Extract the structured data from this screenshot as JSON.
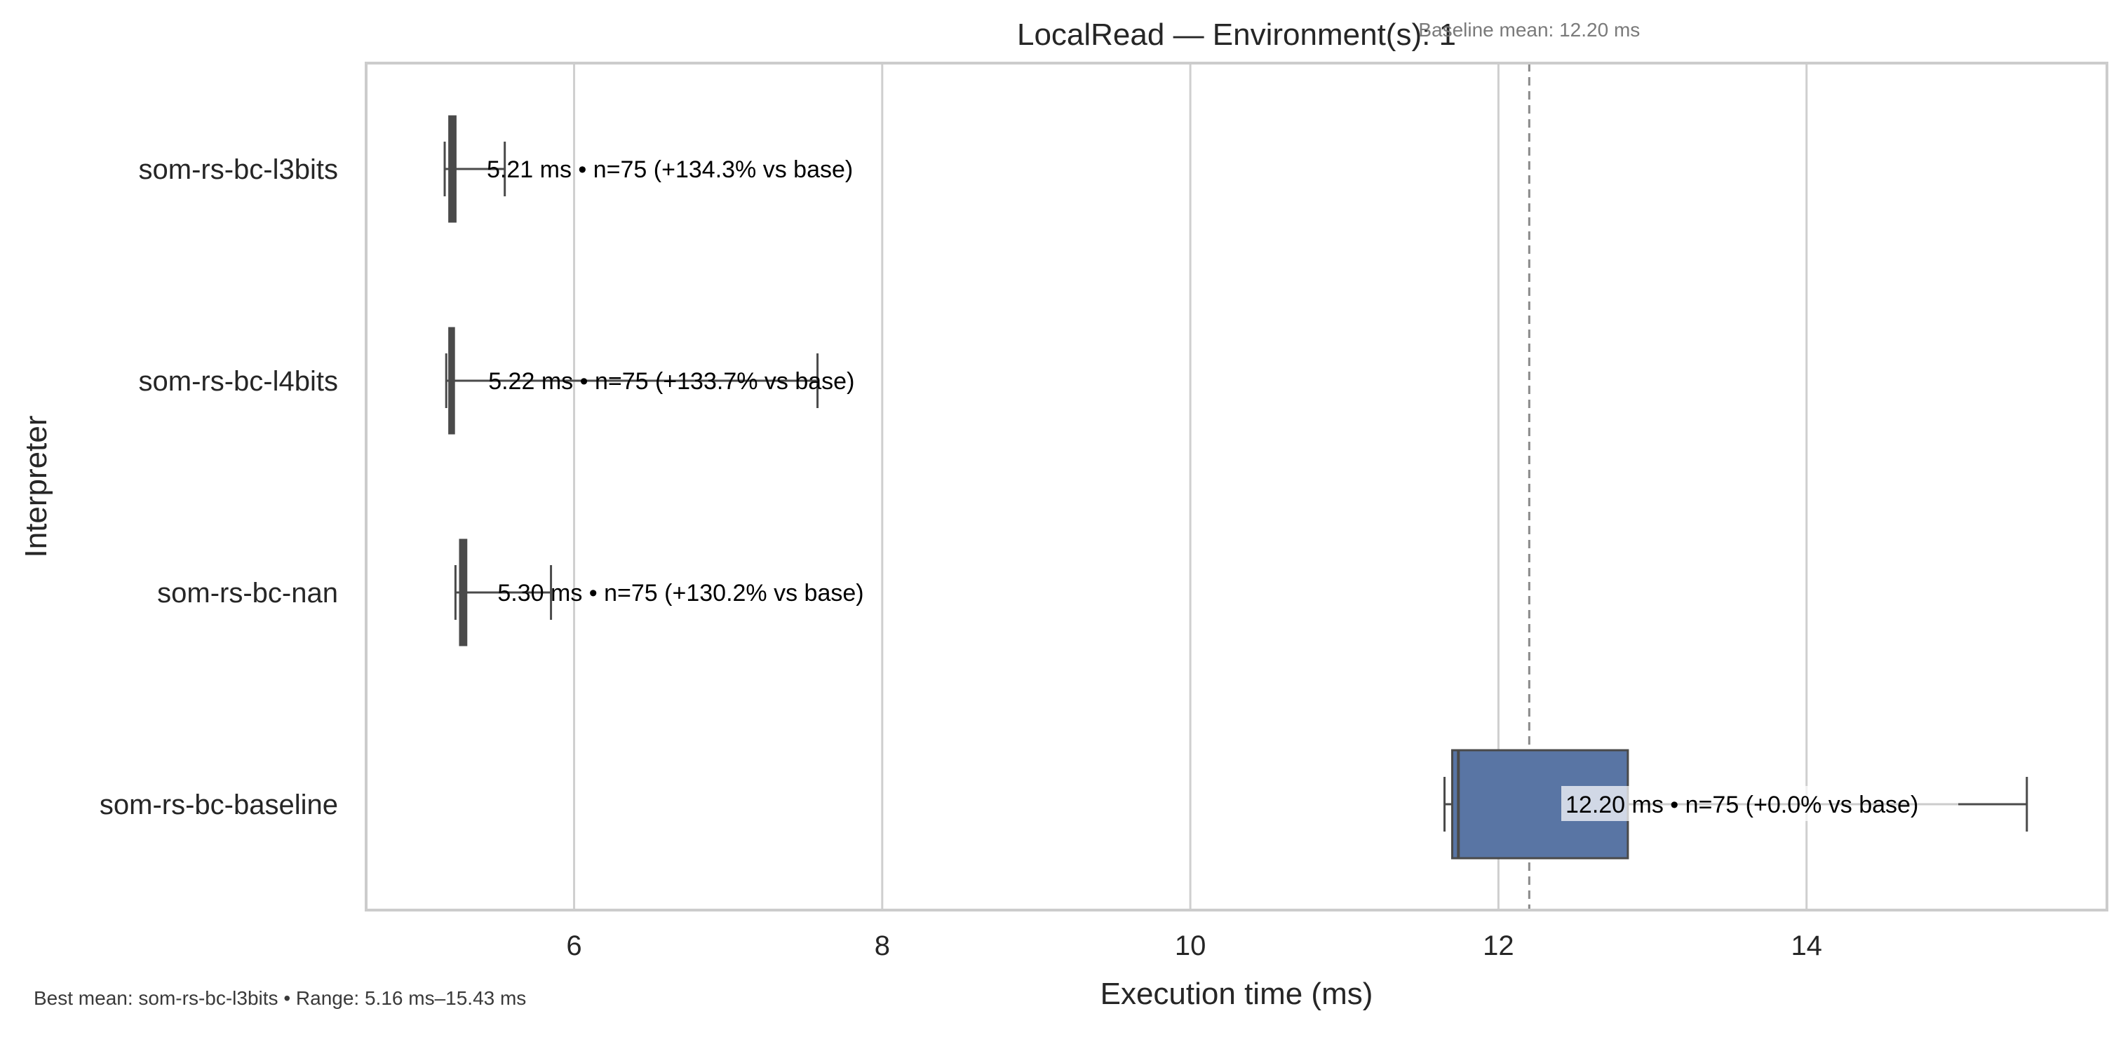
{
  "chart_data": {
    "type": "box",
    "orientation": "horizontal",
    "title": "LocalRead — Environment(s): 1",
    "xlabel": "Execution time (ms)",
    "ylabel": "Interpreter",
    "xlim": [
      4.65,
      15.95
    ],
    "xticks": [
      6,
      8,
      10,
      12,
      14
    ],
    "grid": true,
    "baseline": {
      "value": 12.2,
      "label": "Baseline mean: 12.20 ms"
    },
    "colors": {
      "box": "#5975a4",
      "line": "#4a4a4a",
      "grid": "#cfcfcf",
      "ref": "#8a8a8a"
    },
    "categories": [
      "som-rs-bc-l3bits",
      "som-rs-bc-l4bits",
      "som-rs-bc-nan",
      "som-rs-bc-baseline"
    ],
    "boxes": [
      {
        "name": "som-rs-bc-l3bits",
        "whisker_low": 5.16,
        "q1": 5.19,
        "median": 5.2,
        "q3": 5.23,
        "whisker_high": 5.55,
        "label": "5.21 ms • n=75 (+134.3% vs base)"
      },
      {
        "name": "som-rs-bc-l4bits",
        "whisker_low": 5.17,
        "q1": 5.19,
        "median": 5.2,
        "q3": 5.22,
        "whisker_high": 7.58,
        "label": "5.22 ms • n=75 (+133.7% vs base)"
      },
      {
        "name": "som-rs-bc-nan",
        "whisker_low": 5.23,
        "q1": 5.26,
        "median": 5.27,
        "q3": 5.3,
        "whisker_high": 5.85,
        "label": "5.30 ms • n=75 (+130.2% vs base)"
      },
      {
        "name": "som-rs-bc-baseline",
        "whisker_low": 11.65,
        "q1": 11.7,
        "median": 11.74,
        "q3": 12.84,
        "whisker_high": 15.43,
        "label": "12.20 ms • n=75 (+0.0% vs base)"
      }
    ]
  },
  "footnote": "Best mean: som-rs-bc-l3bits • Range: 5.16 ms–15.43 ms"
}
